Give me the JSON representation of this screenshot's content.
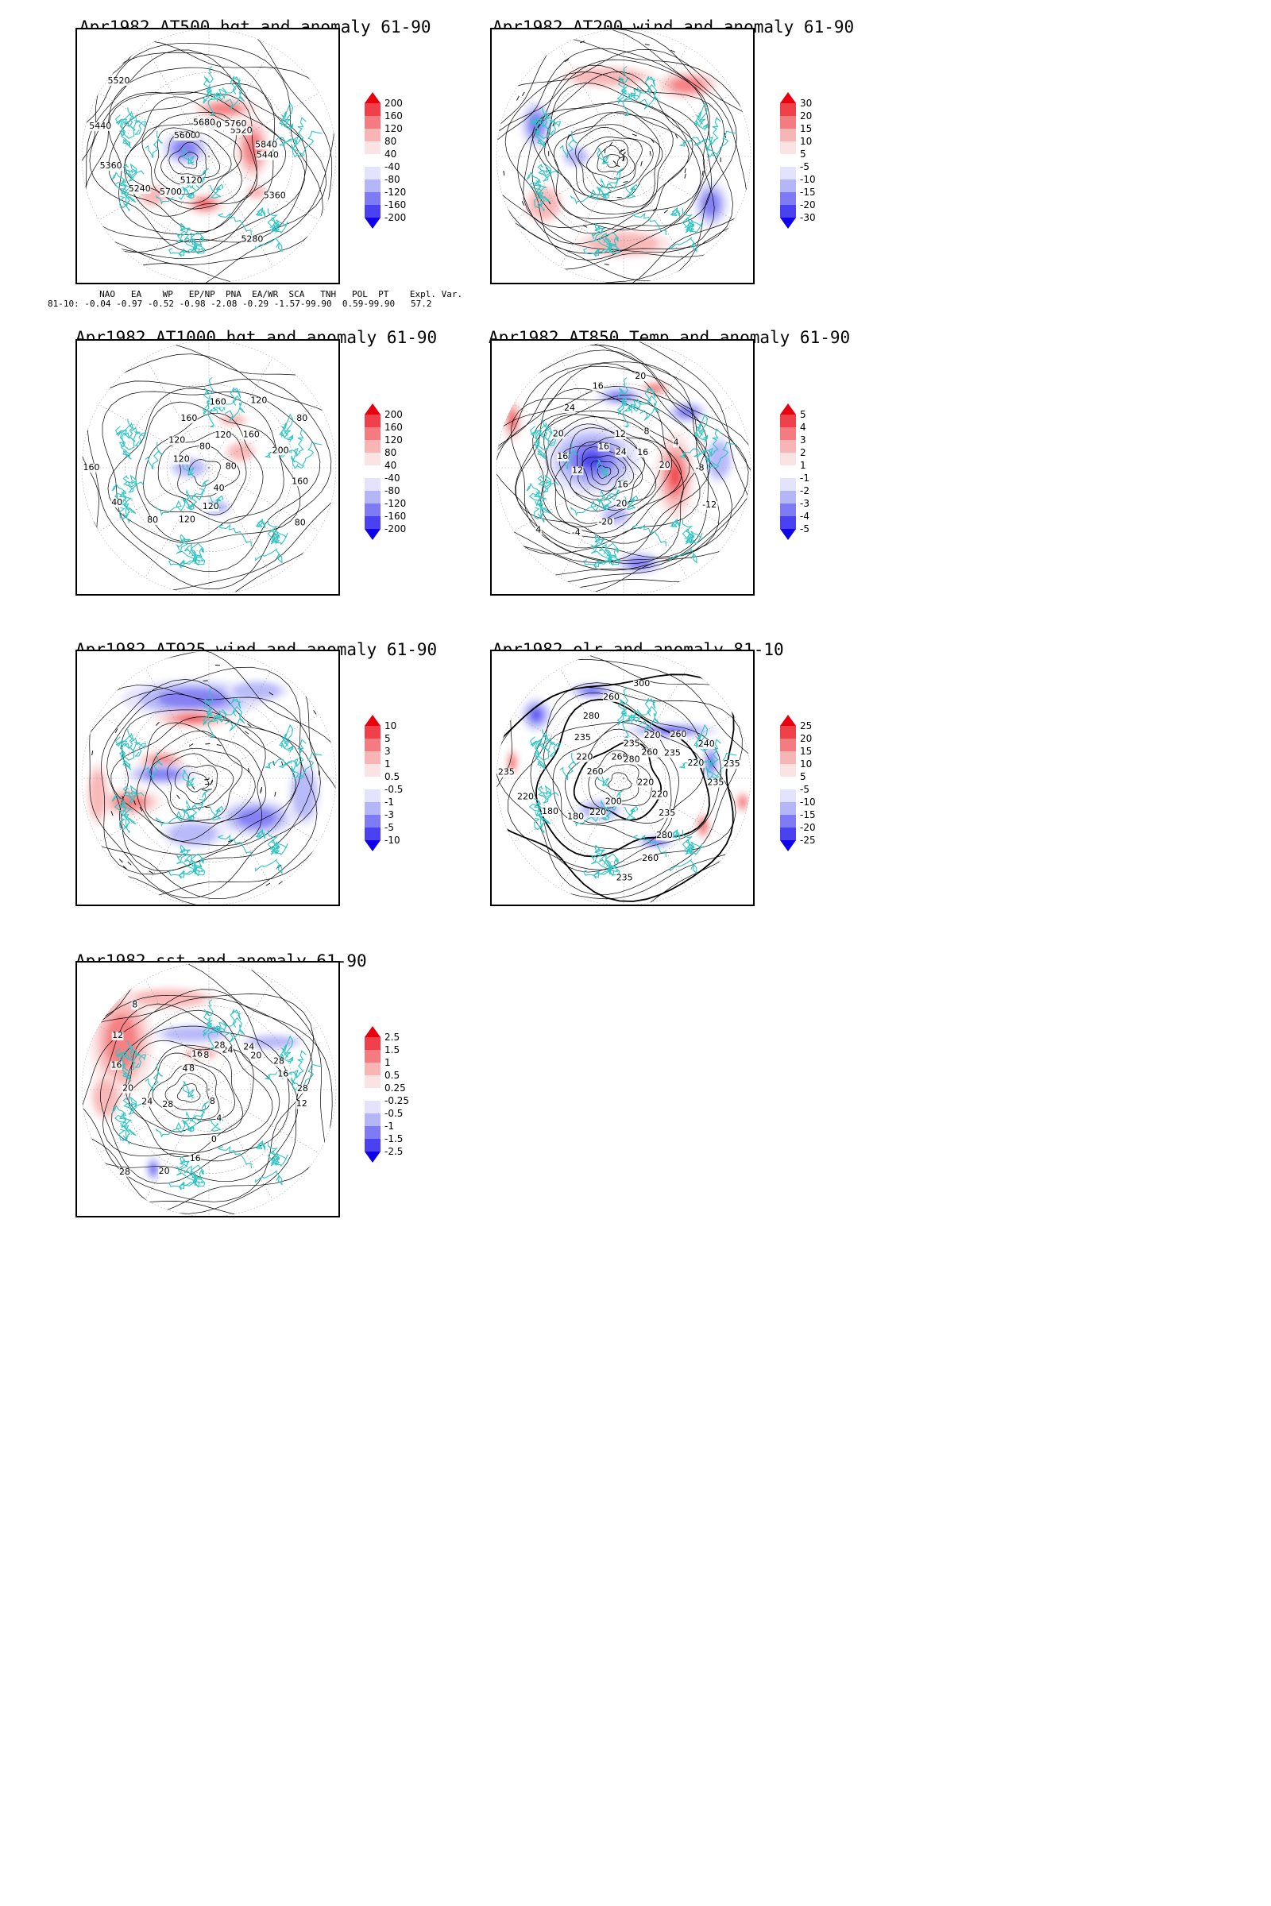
{
  "panels": [
    {
      "id": "at500",
      "title": "Apr1982 AT500 hgt and anomaly 61-90",
      "contour_labels": [
        "5760",
        "5600",
        "5520",
        "5440",
        "5360",
        "5280",
        "5120",
        "5700",
        "5240",
        "5360",
        "5440",
        "5520",
        "5600",
        "5680",
        "5760",
        "5840"
      ],
      "colorbar": [
        "200",
        "160",
        "120",
        "80",
        "40",
        "-40",
        "-80",
        "-120",
        "-160",
        "-200"
      ]
    },
    {
      "id": "at200",
      "title": "Apr1982 AT200 wind and anomaly 61-90",
      "contour_labels": [],
      "colorbar": [
        "30",
        "20",
        "15",
        "10",
        "5",
        "-5",
        "-10",
        "-15",
        "-20",
        "-30"
      ]
    },
    {
      "id": "at1000",
      "title": "Apr1982 AT1000 hgt and anomaly 61-90",
      "contour_labels": [
        "80",
        "120",
        "160",
        "200",
        "160",
        "80",
        "40",
        "120",
        "120",
        "80",
        "40",
        "160",
        "120",
        "120",
        "160",
        "160",
        "120",
        "80",
        "80"
      ],
      "colorbar": [
        "200",
        "160",
        "120",
        "80",
        "40",
        "-40",
        "-80",
        "-120",
        "-160",
        "-200"
      ]
    },
    {
      "id": "at850",
      "title": "Apr1982 AT850 Temp and anomaly 61-90",
      "contour_labels": [
        "16",
        "12",
        "8",
        "4",
        "-8",
        "-12",
        "16",
        "20",
        "-20",
        "-4",
        "4",
        "8",
        "12",
        "16",
        "20",
        "24",
        "16",
        "20",
        "24",
        "16",
        "20"
      ],
      "colorbar": [
        "5",
        "4",
        "3",
        "2",
        "1",
        "-1",
        "-2",
        "-3",
        "-4",
        "-5"
      ]
    },
    {
      "id": "at925",
      "title": "Apr1982 AT925 wind and anomaly 61-90",
      "contour_labels": [],
      "colorbar": [
        "10",
        "5",
        "3",
        "1",
        "0.5",
        "-0.5",
        "-1",
        "-3",
        "-5",
        "-10"
      ]
    },
    {
      "id": "olr",
      "title": "Apr1982 olr and anomaly 81-10",
      "contour_labels": [
        "260",
        "235",
        "220",
        "260",
        "240",
        "235",
        "220",
        "220",
        "235",
        "280",
        "260",
        "235",
        "200",
        "220",
        "180",
        "180",
        "220",
        "235",
        "260",
        "220",
        "235",
        "280",
        "260",
        "300",
        "280",
        "260",
        "235",
        "220",
        "235"
      ],
      "colorbar": [
        "25",
        "20",
        "15",
        "10",
        "5",
        "-5",
        "-10",
        "-15",
        "-20",
        "-25"
      ]
    },
    {
      "id": "sst",
      "title": "Apr1982 sst and anomaly 61-90",
      "contour_labels": [
        "28",
        "28",
        "24",
        "20",
        "16",
        "12",
        "8",
        "4",
        "0",
        "16",
        "20",
        "28",
        "28",
        "24",
        "20",
        "16",
        "12",
        "8",
        "4",
        "16",
        "28",
        "24",
        "28",
        "28"
      ],
      "colorbar": [
        "2.5",
        "1.5",
        "1",
        "0.5",
        "0.25",
        "-0.25",
        "-0.5",
        "-1",
        "-1.5",
        "-2.5"
      ]
    }
  ],
  "indices": {
    "header": "     NAO   EA    WP   EP/NP  PNA  EA/WR  SCA   TNH   POL  PT    Expl. Var.",
    "row": "81-10: -0.04 -0.97 -0.52 -0.98 -2.08 -0.29 -1.57-99.90  0.59-99.90   57.2"
  },
  "colors": {
    "coast": "#2ec4c4",
    "contour": "#000000",
    "cb_pos": [
      "#e8000f",
      "#f0414a",
      "#f47b7f",
      "#f8b5b6",
      "#fce3e3"
    ],
    "cb_neg": [
      "#e3e3fc",
      "#b5b6f8",
      "#7f7bf4",
      "#4a41f0",
      "#0f00e8"
    ]
  }
}
